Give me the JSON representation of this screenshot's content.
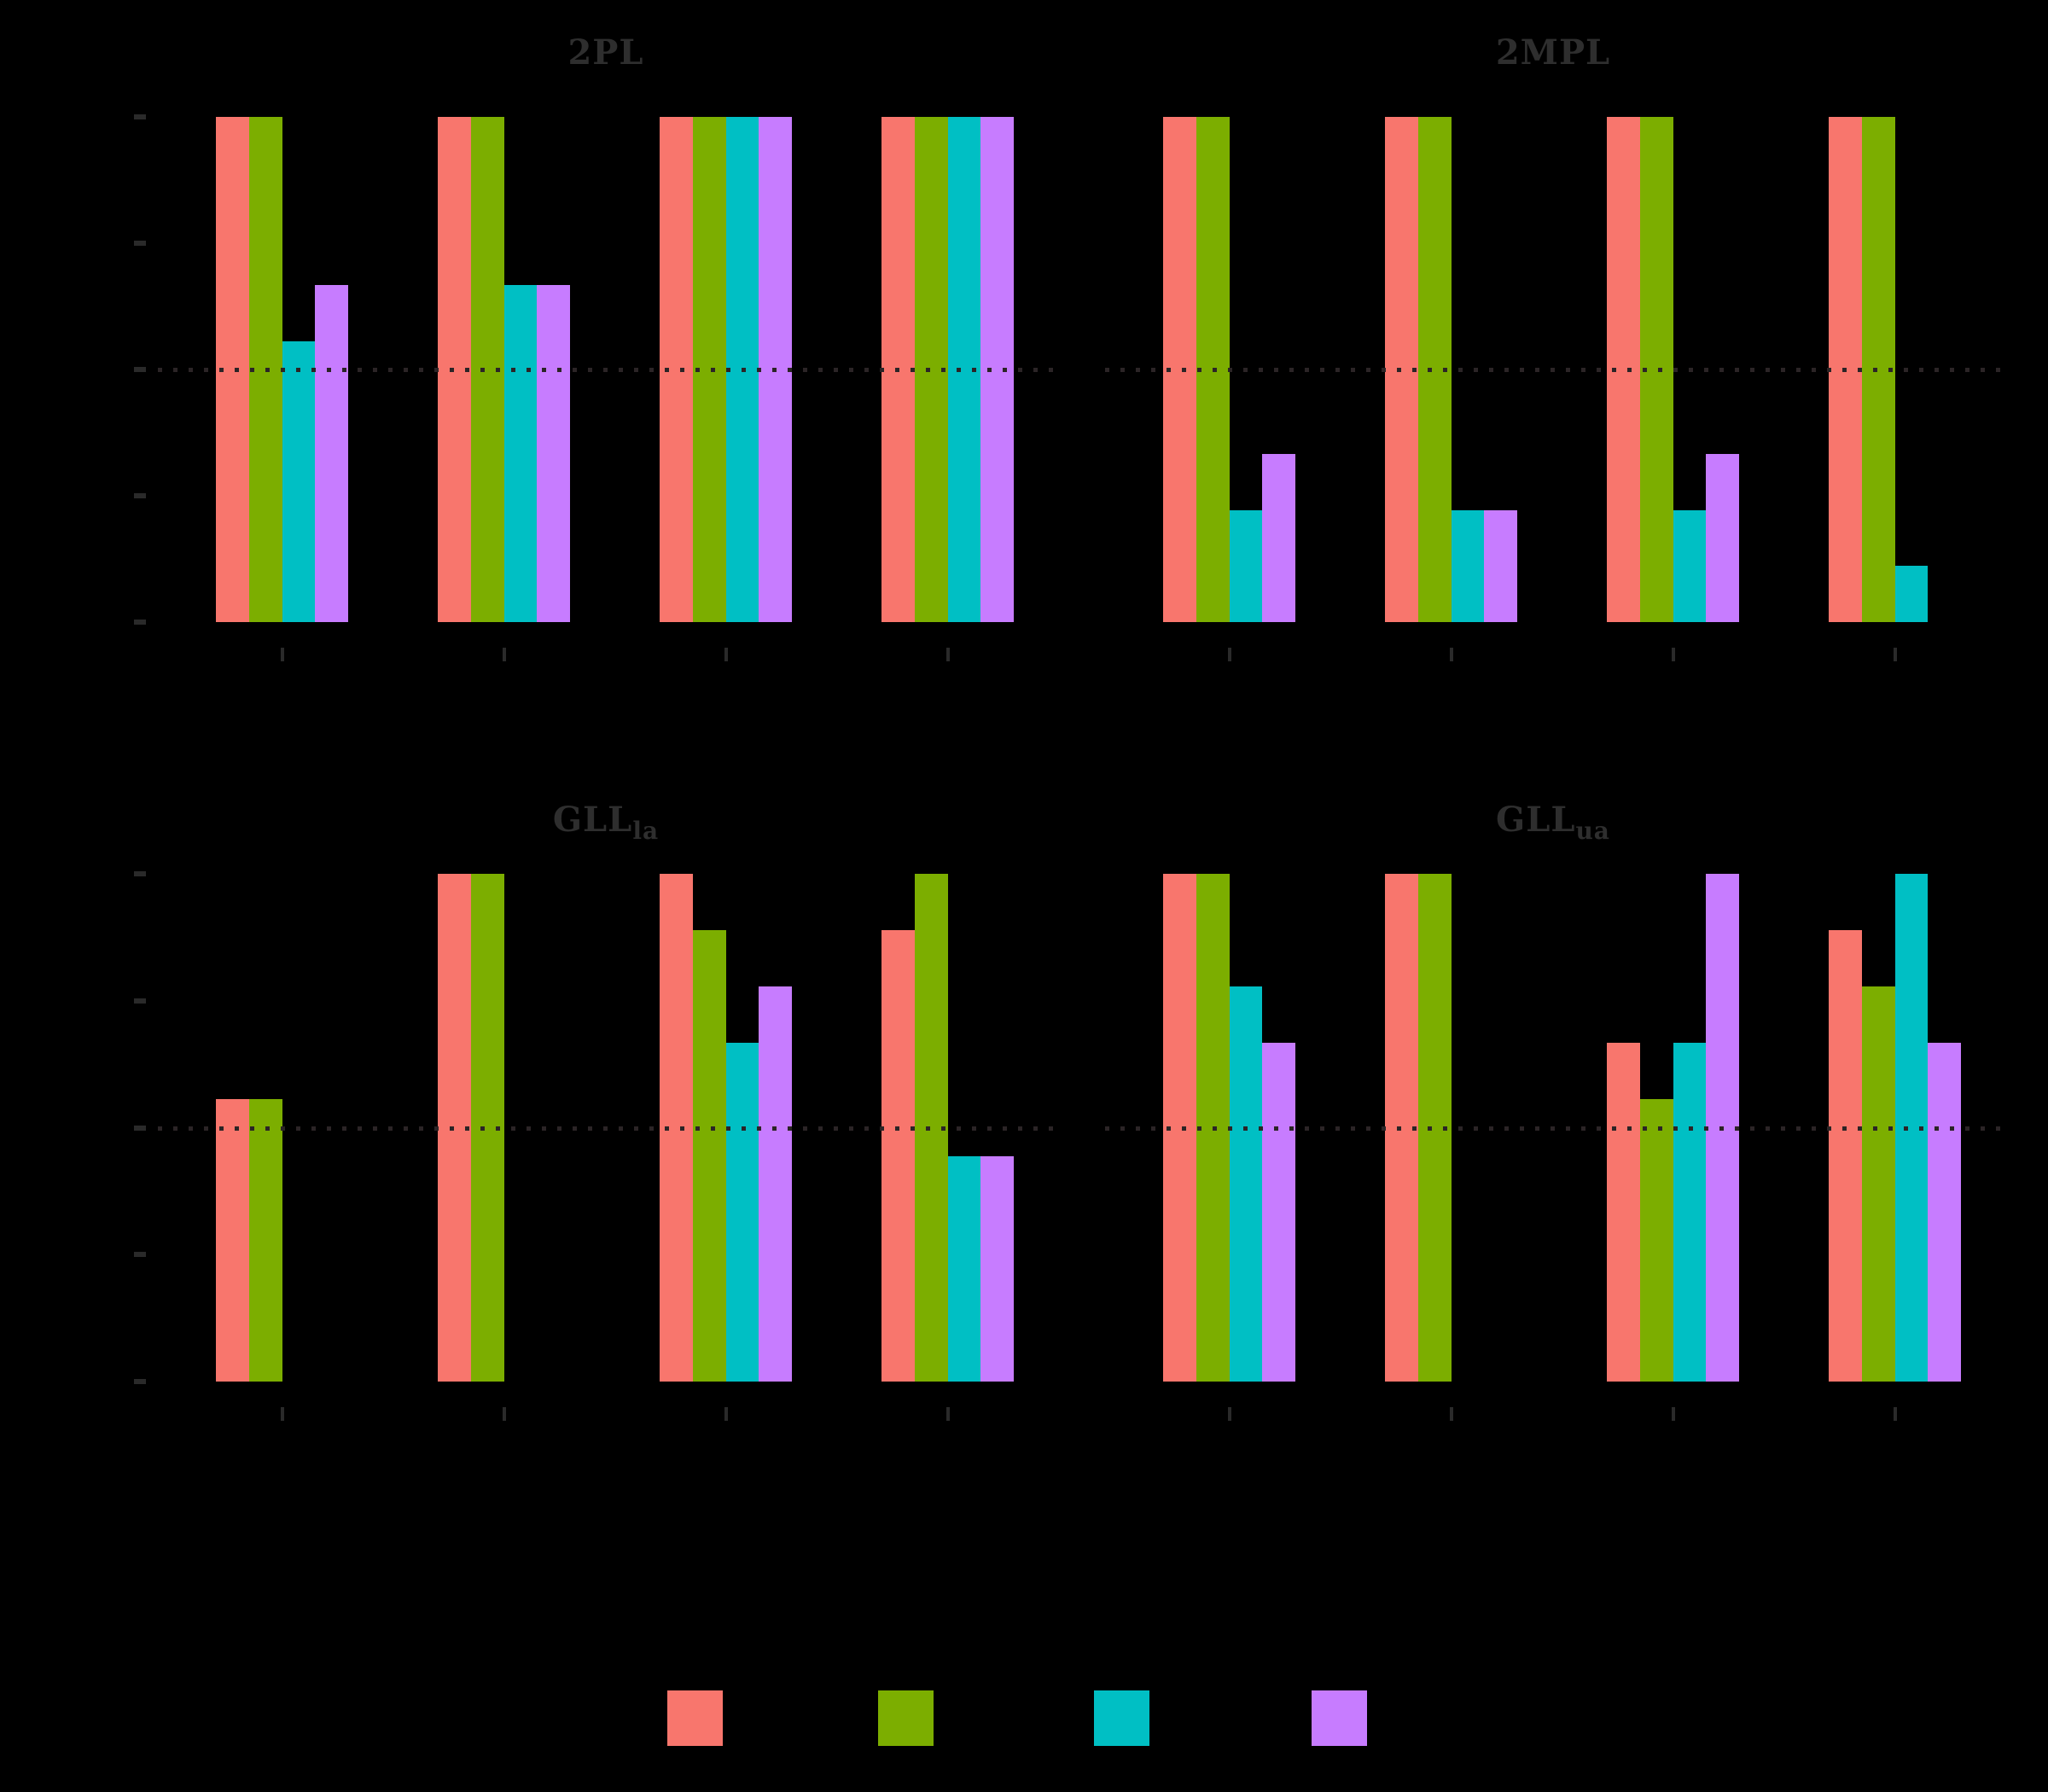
{
  "figure": {
    "background": "#000000",
    "title_color": "#2e2e2e",
    "tick_color": "#2a2a2a",
    "reference_line_color": "#2b2426"
  },
  "chart_data": {
    "type": "bar",
    "layout": "2x2-facet-grid-grouped-bars",
    "series": [
      {
        "name": "salmon",
        "color": "#F8766D"
      },
      {
        "name": "olive-green",
        "color": "#7CAE00"
      },
      {
        "name": "teal",
        "color": "#00BFC4"
      },
      {
        "name": "purple",
        "color": "#C77CFF"
      }
    ],
    "y_axis": {
      "min": 0,
      "max": 1,
      "ticks": [
        0,
        0.25,
        0.5,
        0.75,
        1.0
      ],
      "tick_labels_visible": false
    },
    "x_axis": {
      "groups_per_panel": 4,
      "tick_labels_visible": false
    },
    "reference_line": 0.5,
    "grid": "off",
    "panels": [
      {
        "title": "2PL",
        "subscript": "",
        "values": [
          [
            1.0,
            1.0,
            0.556,
            0.667
          ],
          [
            1.0,
            1.0,
            0.667,
            0.667
          ],
          [
            1.0,
            1.0,
            1.0,
            1.0
          ],
          [
            1.0,
            1.0,
            1.0,
            1.0
          ]
        ]
      },
      {
        "title": "2MPL",
        "subscript": "",
        "values": [
          [
            1.0,
            1.0,
            0.222,
            0.333
          ],
          [
            1.0,
            1.0,
            0.222,
            0.222
          ],
          [
            1.0,
            1.0,
            0.222,
            0.333
          ],
          [
            1.0,
            1.0,
            0.111,
            0.0
          ]
        ]
      },
      {
        "title": "GLL",
        "subscript": "la",
        "values": [
          [
            0.556,
            0.556,
            0.0,
            0.0
          ],
          [
            1.0,
            1.0,
            0.0,
            0.0
          ],
          [
            1.0,
            0.889,
            0.667,
            0.778
          ],
          [
            0.889,
            1.0,
            0.444,
            0.444
          ]
        ]
      },
      {
        "title": "GLL",
        "subscript": "ua",
        "values": [
          [
            1.0,
            1.0,
            0.778,
            0.667
          ],
          [
            1.0,
            1.0,
            0.0,
            0.0
          ],
          [
            0.667,
            0.556,
            0.667,
            1.0
          ],
          [
            0.889,
            0.778,
            1.0,
            0.667
          ]
        ]
      }
    ],
    "legend": {
      "position": "bottom",
      "swatch_colors": [
        "#F8766D",
        "#7CAE00",
        "#00BFC4",
        "#C77CFF"
      ],
      "labels_visible": false
    }
  }
}
